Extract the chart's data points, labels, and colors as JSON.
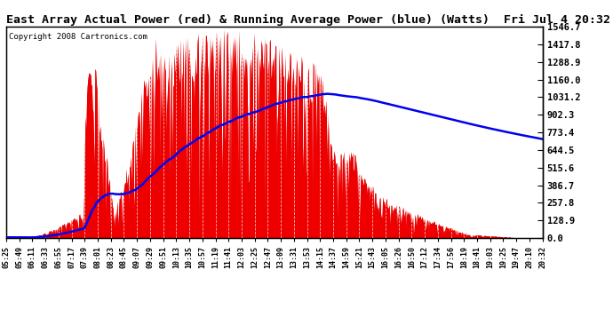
{
  "title": "East Array Actual Power (red) & Running Average Power (blue) (Watts)  Fri Jul 4 20:32",
  "copyright": "Copyright 2008 Cartronics.com",
  "ylabel_right_values": [
    1546.7,
    1417.8,
    1288.9,
    1160.0,
    1031.2,
    902.3,
    773.4,
    644.5,
    515.6,
    386.7,
    257.8,
    128.9,
    0.0
  ],
  "ymax": 1546.7,
  "ymin": 0.0,
  "bg_color": "#ffffff",
  "plot_bg_color": "#cc0000",
  "grid_color": "#ffffff",
  "actual_color": "#ff0000",
  "avg_color": "#0000ff",
  "x_tick_labels": [
    "05:25",
    "05:49",
    "06:11",
    "06:33",
    "06:55",
    "07:17",
    "07:39",
    "08:01",
    "08:23",
    "08:45",
    "09:07",
    "09:29",
    "09:51",
    "10:13",
    "10:35",
    "10:57",
    "11:19",
    "11:41",
    "12:03",
    "12:25",
    "12:47",
    "13:09",
    "13:31",
    "13:53",
    "14:15",
    "14:37",
    "14:59",
    "15:21",
    "15:43",
    "16:05",
    "16:26",
    "16:50",
    "17:12",
    "17:34",
    "17:56",
    "18:19",
    "18:41",
    "19:03",
    "19:25",
    "19:47",
    "20:10",
    "20:32"
  ],
  "n_points": 840
}
